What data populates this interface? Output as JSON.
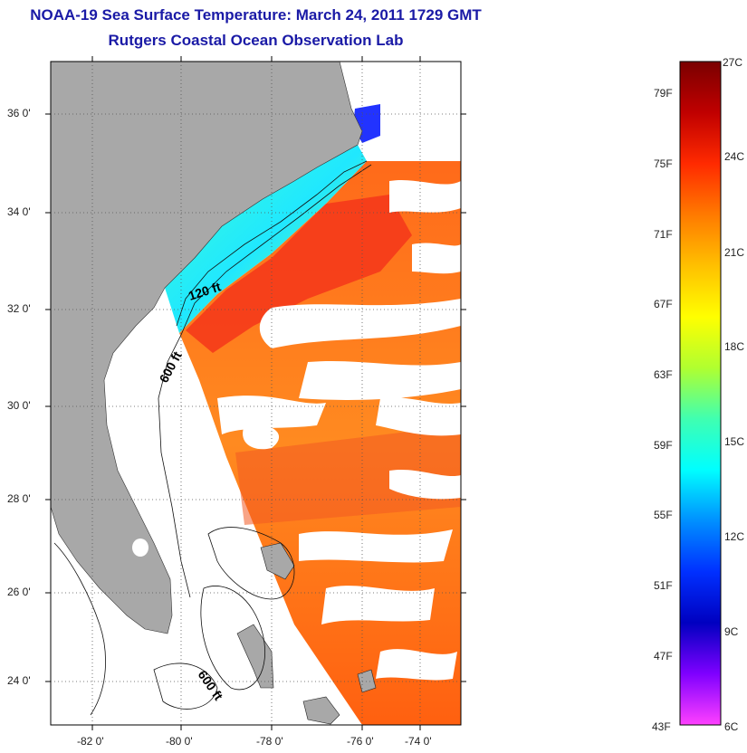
{
  "title": "NOAA-19 Sea Surface Temperature:  March 24, 2011 1729 GMT",
  "subtitle": "Rutgers Coastal Ocean Observation Lab",
  "map": {
    "lat_labels": [
      "36 0'",
      "34 0'",
      "32 0'",
      "30 0'",
      "28 0'",
      "26 0'",
      "24 0'"
    ],
    "lon_labels": [
      "-82 0'",
      "-80 0'",
      "-78 0'",
      "-76 0'",
      "-74 0'"
    ],
    "depth_labels": [
      "120 ft",
      "600 ft",
      "600 ft"
    ],
    "land_color": "#a8a8a8"
  },
  "colorbar": {
    "fahrenheit_labels": [
      "79F",
      "75F",
      "71F",
      "67F",
      "63F",
      "59F",
      "55F",
      "51F",
      "47F",
      "43F"
    ],
    "celsius_labels": [
      "27C",
      "24C",
      "21C",
      "18C",
      "15C",
      "12C",
      "9C",
      "6C"
    ],
    "colors_top_to_bottom": [
      "#7a0000",
      "#c00000",
      "#ff2a00",
      "#ff7a00",
      "#ffc000",
      "#ffff00",
      "#b0ff30",
      "#40ffb0",
      "#00ffff",
      "#0090ff",
      "#0030ff",
      "#0000c0",
      "#7f00ff",
      "#ff40ff"
    ]
  }
}
